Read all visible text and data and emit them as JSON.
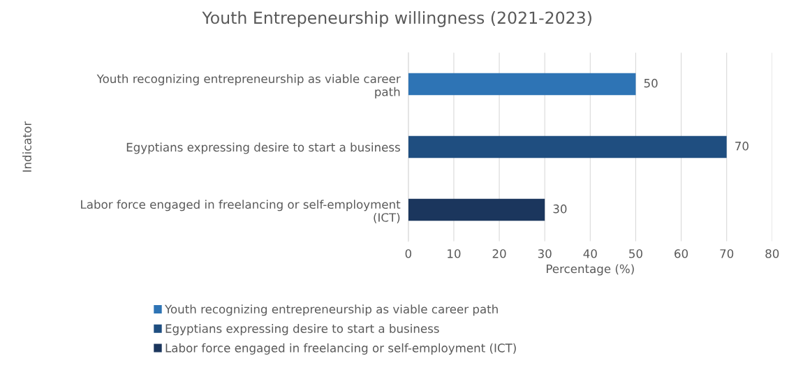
{
  "chart_data": {
    "type": "bar",
    "orientation": "horizontal",
    "title": "Youth Entrepeneurship willingness (2021-2023)",
    "xlabel": "Percentage (%)",
    "ylabel": "Indicator",
    "categories": [
      "Youth recognizing entrepreneurship as viable career path",
      "Egyptians expressing desire to start a business",
      "Labor force engaged in freelancing or self-employment (ICT)"
    ],
    "series": [
      {
        "name": "Youth recognizing entrepreneurship as viable career path",
        "color": "#2e74b5",
        "values": [
          50,
          null,
          null
        ]
      },
      {
        "name": "Egyptians expressing desire to start a business",
        "color": "#1f4e80",
        "values": [
          null,
          70,
          null
        ]
      },
      {
        "name": "Labor force engaged in freelancing or self-employment (ICT)",
        "color": "#1b365d",
        "values": [
          null,
          null,
          30
        ]
      }
    ],
    "xlim": [
      0,
      80
    ],
    "xticks": [
      0,
      10,
      20,
      30,
      40,
      50,
      60,
      70,
      80
    ],
    "grid": "x",
    "legend": "bottom",
    "data_labels": true
  }
}
